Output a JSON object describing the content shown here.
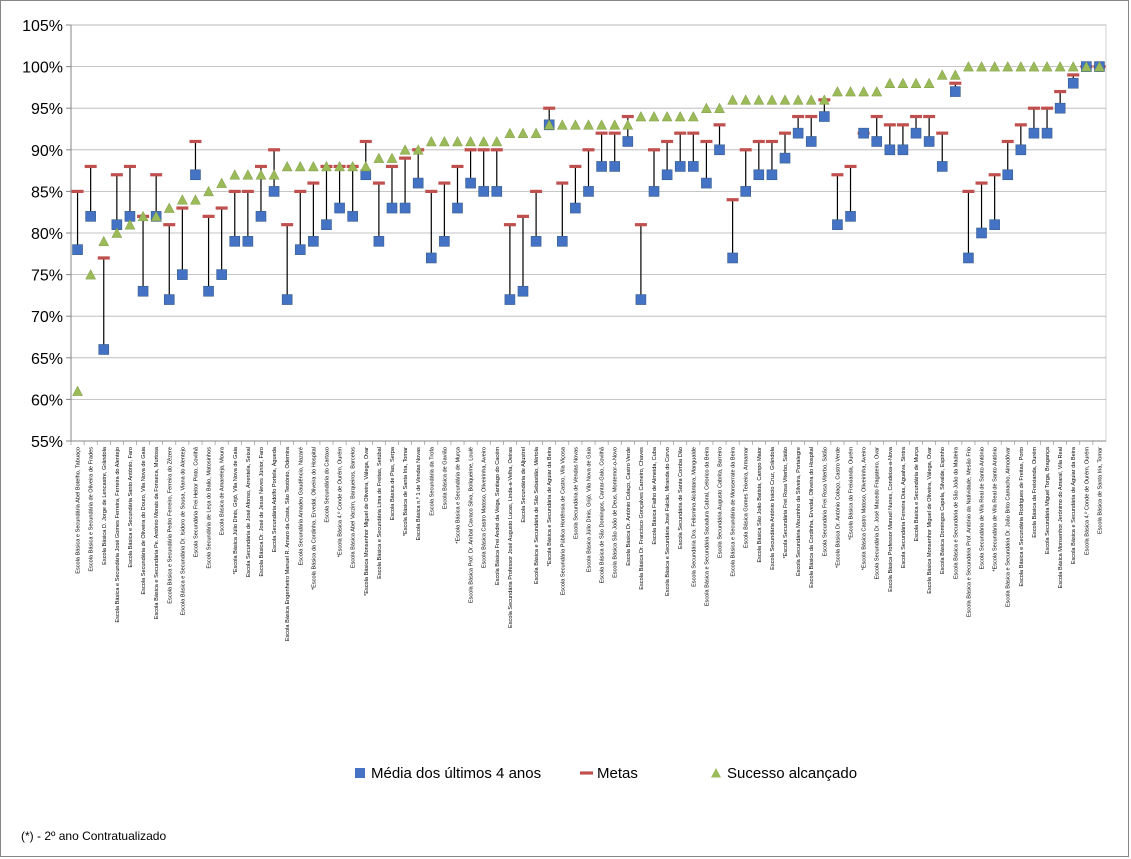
{
  "chart_data": {
    "type": "scatter",
    "ylim": [
      55,
      105
    ],
    "y_tick_step": 5,
    "y_tick_suffix": "%",
    "grid": "horizontal",
    "legend_position": "bottom",
    "categories": [
      "Escola Básica e Secundária Abel Botelho, Tabuaço",
      "Escola Básica e Secundária de Oliveira de Frades",
      "Escola Básica D. Jorge de Lencastre, Grândola",
      "Escola Básica e Secundária José Gomes Ferreira, Ferreira do Alentejo",
      "Escola Básica e Secundária Santo António, Faro",
      "Escola Secundária de Oliveira do Douro, Vila Nova de Gaia",
      "Escola Básica e Secundária Pe. António Morais da Fonseca, Murtosa",
      "Escola Básica e Secundária Pedro Ferreiro, Ferreira do Zêzere",
      "Escola Básica e Secundária Dr. Isidoro de Sousa, Viana do Alentejo",
      "Escola Secundária Frei Heitor Pinto, Covilhã",
      "Escola Secundária de Leça do Balio, Matosinhos",
      "Escola Básica de Amareleja, Moura",
      "*Escola Básica Júlio Dinis, Grijó, Vila Nova de Gaia",
      "Escola Secundária de José Afonso, Arrentela, Seixal",
      "Escola Básica Dr. José de Jesus Neves Júnior, Faro",
      "Escola Secundária Adolfo Portela, Águeda",
      "Escola Básica Engenheiro Manuel R. Amaro da Costa, São Teotónio, Odemira",
      "Escola Secundária Amadeu Gaudêncio, Nazaré",
      "*Escola Básica da Cordinha, Ervedal, Oliveira do Hospital",
      "Escola Secundária do Cartaxo",
      "*Escola Básica 4.º Conde de Ourém, Ourém",
      "Escola Básica Abel Varzim, Barqueiros, Barcelos",
      "*Escola Básica Monsenhor Miguel de Oliveira, Válega, Ovar",
      "Escola Básica e Secundária Lima de Freitas, Setúbal",
      "Escola Básica de Pias, Serpa",
      "*Escola Básica de Santa Iria, Tomar",
      "Escola Básica n.º 1 de Vendas Novas",
      "Escola Secundária da Trofa",
      "Escola Básica de Gavião",
      "*Escola Básica e Secundária de Murça",
      "Escola Básica Prof. Dr. Aníbal Cavaco Silva, Boliqueime, Loulé",
      "Escola Básica Castro Matoso, Oliveirinha, Aveiro",
      "Escola Básica Frei André da Veiga, Santiago do Cacém",
      "Escola Secundária Professor José Augusto Lucas, Linda-a-Velha, Oeiras",
      "Escola Secundária de Aljustrel",
      "Escola Básica e Secundária de São Sebastião, Mértola",
      "*Escola Básica e Secundária de Aguiar da Beira",
      "Escola Secundária Pública Hortênsia de Castro, Vila Viçosa",
      "Escola Secundária de Vendas Novas",
      "Escola Básica Júlio Dinis, Grijó, Vila Nova de Gaia",
      "Escola Básica de São Domingos, Cantar-Galo, Covilhã",
      "Escola Básica São João de Deus, Montemor-o-Novo",
      "Escola Básica Dr. António Colaço, Castro Verde",
      "Escola Básica Dr. Francisco Gonçalves Carneiro, Chaves",
      "Escola Básica Fialho de Almeida, Cuba",
      "Escola Básica e Secundária José Falcão, Miranda do Corvo",
      "Escola Secundária de Santa Comba Dão",
      "Escola Secundária Dra. Felismina Alcântara, Mangualde",
      "Escola Básica e Secundária Sacadura Cabral, Celorico da Beira",
      "Escola Secundária Augusto Cabrita, Barreiro",
      "Escola Básica e Secundária de Monserrate da Beira",
      "Escola Básica Gomes Teixeira, Armamar",
      "Escola Básica São João Batista, Campo Maior",
      "Escola Secundária António Inácio Cruz, Grândola",
      "*Escola Secundária Frei Rosa Viterbo, Sátão",
      "Escola Secundária Mouzinho da Silveira, Portalegre",
      "Escola Básica da Cordinha, Ervedal, Oliveira do Hospital",
      "Escola Secundária Frei Rosa Viterbo, Sátão",
      "*Escola Básica Dr. António Colaço, Castro Verde",
      "*Escola Básica da Freixianda, Ourém",
      "*Escola Básica Castro Matoso, Oliveirinha, Aveiro",
      "Escola Secundária Dr. José Macedo Fragateiro, Ovar",
      "Escola Básica Professor Manuel Nunes, Condeixa-a-Nova",
      "Escola Secundária Ferreira Dias, Agualva, Sintra",
      "Escola Básica e Secundária de Murça",
      "Escola Básica Monsenhor Miguel de Oliveira, Válega, Ovar",
      "Escola Básica Domingos Capela, Silvalde, Espinho",
      "Escola Básica e Secundária de São João da Madeira",
      "Escola Básica e Secundária Prof. António da Natividade, Mesão Frio",
      "Escola Secundária de Vila Real de Santo António",
      "*Escola Secundária de Vila Real de Santo António",
      "Escola Básica e Secundária Dr. João Brito Camacho, Almodôvar",
      "Escola Básica e Secundária Rodrigues de Freitas, Porto",
      "Escola Básica da Freixianda, Ourém",
      "Escola Secundária Miguel Torga, Bragança",
      "Escola Básica Monsenhor Jerónimo do Amaral, Vila Real",
      "Escola Básica e Secundária de Aguiar da Beira",
      "Escola Básica 4.º Conde de Ourém, Ourém",
      "Escola Básica de Santa Iria, Tomar"
    ],
    "series": [
      {
        "name": "Média dos últimos 4 anos",
        "marker": "square",
        "color": "#4472C4",
        "values": [
          78,
          82,
          66,
          81,
          82,
          73,
          82,
          72,
          75,
          87,
          73,
          75,
          79,
          79,
          82,
          85,
          72,
          78,
          79,
          81,
          83,
          82,
          87,
          79,
          83,
          83,
          86,
          77,
          79,
          83,
          86,
          85,
          85,
          72,
          73,
          79,
          93,
          79,
          83,
          85,
          88,
          88,
          91,
          72,
          85,
          87,
          88,
          88,
          86,
          90,
          77,
          85,
          87,
          87,
          89,
          92,
          91,
          94,
          81,
          82,
          92,
          91,
          90,
          90,
          92,
          91,
          88,
          97,
          77,
          80,
          81,
          87,
          90,
          92,
          92,
          95,
          98,
          100,
          100
        ]
      },
      {
        "name": "Metas",
        "marker": "dash",
        "color": "#C0504D",
        "values": [
          85,
          88,
          77,
          87,
          88,
          82,
          87,
          81,
          83,
          91,
          82,
          83,
          85,
          85,
          88,
          90,
          81,
          85,
          86,
          88,
          88,
          88,
          91,
          86,
          88,
          89,
          90,
          85,
          86,
          88,
          90,
          90,
          90,
          81,
          82,
          85,
          95,
          86,
          88,
          90,
          92,
          92,
          94,
          81,
          90,
          91,
          92,
          92,
          91,
          93,
          84,
          90,
          91,
          91,
          92,
          94,
          94,
          96,
          87,
          88,
          92,
          94,
          93,
          93,
          94,
          94,
          92,
          98,
          85,
          86,
          87,
          91,
          93,
          95,
          95,
          97,
          99,
          100,
          100
        ]
      },
      {
        "name": "Sucesso alcançado",
        "marker": "triangle",
        "color": "#9BBB59",
        "values": [
          61,
          75,
          79,
          80,
          81,
          82,
          82,
          83,
          84,
          84,
          85,
          86,
          87,
          87,
          87,
          87,
          88,
          88,
          88,
          88,
          88,
          88,
          88,
          89,
          89,
          90,
          90,
          91,
          91,
          91,
          91,
          91,
          91,
          92,
          92,
          92,
          93,
          93,
          93,
          93,
          93,
          93,
          93,
          94,
          94,
          94,
          94,
          94,
          95,
          95,
          96,
          96,
          96,
          96,
          96,
          96,
          96,
          96,
          97,
          97,
          97,
          97,
          98,
          98,
          98,
          98,
          99,
          99,
          100,
          100,
          100,
          100,
          100,
          100,
          100,
          100,
          100,
          100,
          100
        ]
      }
    ],
    "footnote": "(*) - 2º ano Contratualizado"
  }
}
